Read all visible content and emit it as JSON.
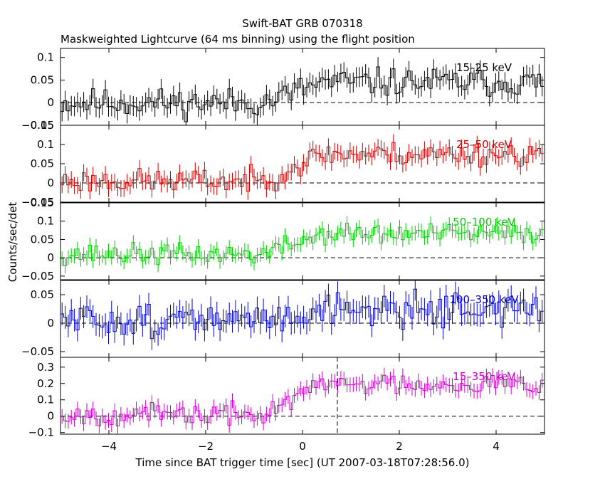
{
  "chart_data": {
    "type": "line",
    "title": "Swift-BAT GRB 070318",
    "subtitle": "Maskweighted Lightcurve (64 ms binning) using the flight position",
    "xlabel": "Time since BAT trigger time [sec] (UT 2007-03-18T07:28:56.0)",
    "ylabel": "Counts/sec/det",
    "xlim": [
      -5,
      5
    ],
    "x_ticks": [
      -4,
      -2,
      0,
      2,
      4
    ],
    "x_tick_labels": [
      "−4",
      "−2",
      "0",
      "2",
      "4"
    ],
    "bin_width_sec": 0.064,
    "vertical_marker_x": 0.72,
    "panels": [
      {
        "name": "15-25 keV",
        "label": "15–25 keV",
        "color": "#000000",
        "ylim": [
          -0.05,
          0.12
        ],
        "y_ticks": [
          0.1,
          0.05,
          0,
          -0.05
        ],
        "y_tick_labels": [
          "0.1",
          "0.05",
          "0",
          "−0.05"
        ],
        "pre_level": 0.0,
        "post_level": 0.045,
        "noise": 0.022,
        "err": 0.022,
        "seed": 11
      },
      {
        "name": "25-50 keV",
        "label": "25–50 keV",
        "color": "#cc0000",
        "ylim": [
          -0.05,
          0.15
        ],
        "y_ticks": [
          0.15,
          0.1,
          0.05,
          0,
          -0.05
        ],
        "y_tick_labels": [
          "0.15",
          "0.1",
          "0.05",
          "0",
          "−0.05"
        ],
        "pre_level": 0.005,
        "post_level": 0.075,
        "noise": 0.022,
        "err": 0.022,
        "seed": 23
      },
      {
        "name": "50-100 keV",
        "label": "50–100 keV",
        "color": "#00cc00",
        "ylim": [
          -0.06,
          0.15
        ],
        "y_ticks": [
          0.15,
          0.1,
          0.05,
          0,
          -0.05
        ],
        "y_tick_labels": [
          "0.15",
          "0.1",
          "0.05",
          "0",
          "−0.05"
        ],
        "pre_level": 0.01,
        "post_level": 0.065,
        "noise": 0.02,
        "err": 0.02,
        "seed": 37
      },
      {
        "name": "100-350 keV",
        "label": "100–350 keV",
        "color": "#0000cc",
        "ylim": [
          -0.06,
          0.075
        ],
        "y_ticks": [
          0.05,
          0,
          -0.05
        ],
        "y_tick_labels": [
          "0.05",
          "0",
          "−0.05"
        ],
        "pre_level": 0.005,
        "post_level": 0.025,
        "noise": 0.02,
        "err": 0.02,
        "seed": 51
      },
      {
        "name": "15-350 keV",
        "label": "15–350 keV",
        "color": "#cc00cc",
        "ylim": [
          -0.11,
          0.36
        ],
        "y_ticks": [
          0.3,
          0.2,
          0.1,
          0,
          -0.1
        ],
        "y_tick_labels": [
          "0.3",
          "0.2",
          "0.1",
          "0",
          "−0.1"
        ],
        "pre_level": 0.01,
        "post_level": 0.2,
        "noise": 0.045,
        "err": 0.045,
        "seed": 67
      }
    ]
  }
}
